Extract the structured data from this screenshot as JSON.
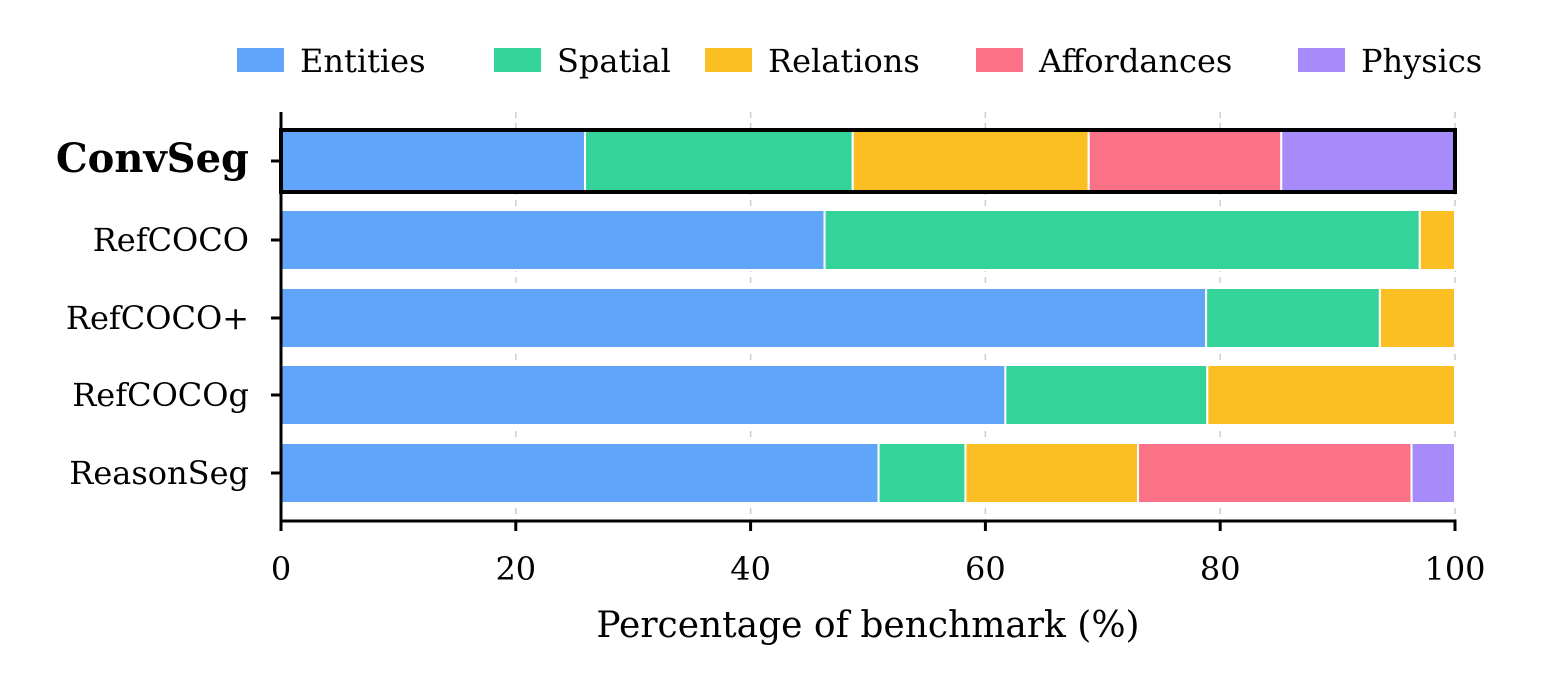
{
  "chart_data": {
    "type": "bar",
    "orientation": "horizontal",
    "stacked": true,
    "title": "",
    "xlabel": "Percentage of benchmark (%)",
    "ylabel": "",
    "xlim": [
      0,
      100
    ],
    "xticks": [
      0,
      20,
      40,
      60,
      80,
      100
    ],
    "grid": "vertical dashed",
    "legend_position": "top",
    "categories": [
      "ConvSeg",
      "RefCOCO",
      "RefCOCO+",
      "RefCOCOg",
      "ReasonSeg"
    ],
    "highlighted_category": "ConvSeg",
    "series": [
      {
        "name": "Entities",
        "color": "#60a5fa",
        "values": [
          25.9,
          46.3,
          78.8,
          61.7,
          50.9
        ]
      },
      {
        "name": "Spatial",
        "color": "#34d399",
        "values": [
          22.8,
          50.7,
          14.8,
          17.2,
          7.4
        ]
      },
      {
        "name": "Relations",
        "color": "#fbbf24",
        "values": [
          20.1,
          3.0,
          6.4,
          21.1,
          14.7
        ]
      },
      {
        "name": "Affordances",
        "color": "#fb7185",
        "values": [
          16.4,
          0,
          0,
          0,
          23.3
        ]
      },
      {
        "name": "Physics",
        "color": "#a78bfa",
        "values": [
          14.8,
          0,
          0,
          0,
          3.7
        ]
      }
    ]
  }
}
